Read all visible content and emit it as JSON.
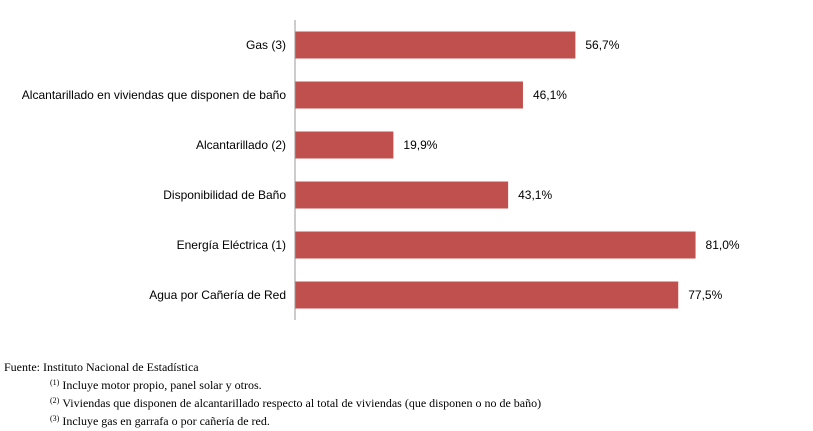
{
  "chart_data": {
    "type": "bar",
    "orientation": "horizontal",
    "categories": [
      "Gas (3)",
      "Alcantarillado en viviendas que disponen de baño",
      "Alcantarillado (2)",
      "Disponibilidad de Baño",
      "Energía Eléctrica (1)",
      "Agua por Cañería de Red"
    ],
    "values": [
      56.7,
      46.1,
      19.9,
      43.1,
      81.0,
      77.5
    ],
    "value_labels": [
      "56,7%",
      "46,1%",
      "19,9%",
      "43,1%",
      "81,0%",
      "77,5%"
    ],
    "xlim": [
      0,
      100
    ],
    "bar_color": "#c0504d",
    "axis_color": "#999999",
    "grid": false
  },
  "footer": {
    "source": "Fuente: Instituto Nacional de Estadística",
    "notes": [
      {
        "marker": "(1)",
        "text": "Incluye motor propio, panel solar y otros."
      },
      {
        "marker": "(2)",
        "text": "Viviendas que disponen de alcantarillado respecto al total de viviendas (que disponen o no de baño)"
      },
      {
        "marker": "(3)",
        "text": "Incluye gas en garrafa o por cañería de red."
      }
    ]
  }
}
